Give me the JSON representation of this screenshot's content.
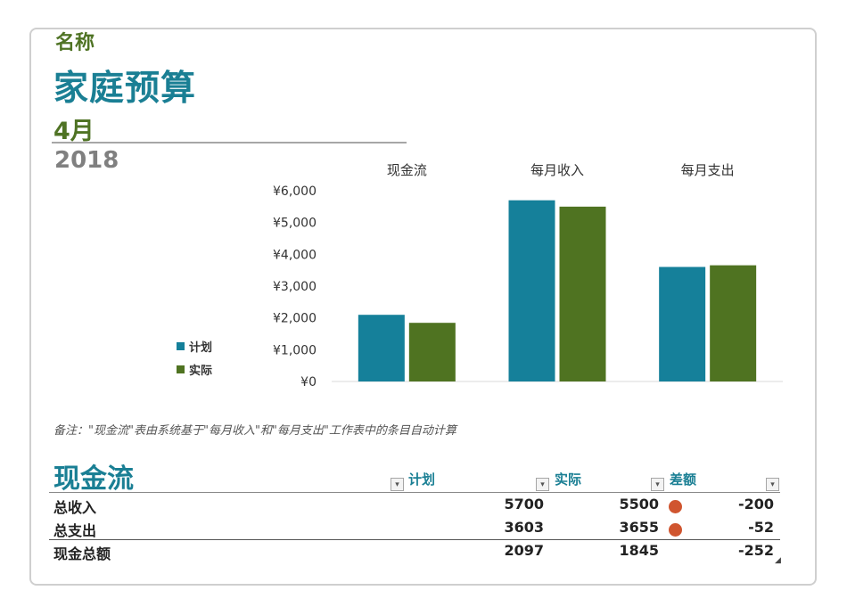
{
  "header": {
    "name_label": "名称",
    "title": "家庭预算",
    "month": "4月",
    "year": "2018"
  },
  "colors": {
    "plan": "#15809a",
    "actual": "#4f7321",
    "title_teal": "#1a7f94",
    "green": "#4f7324",
    "indicator_red": "#d0552f"
  },
  "chart_data": {
    "type": "bar",
    "categories": [
      "现金流",
      "每月收入",
      "每月支出"
    ],
    "series": [
      {
        "name": "计划",
        "values": [
          2097,
          5700,
          3603
        ]
      },
      {
        "name": "实际",
        "values": [
          1845,
          5500,
          3655
        ]
      }
    ],
    "y_ticks": [
      "¥6,000",
      "¥5,000",
      "¥4,000",
      "¥3,000",
      "¥2,000",
      "¥1,000",
      "¥0"
    ],
    "ylim": [
      0,
      6000
    ],
    "legend_position": "left"
  },
  "note": "备注：\"现金流\"表由系统基于\"每月收入\"和\"每月支出\"工作表中的条目自动计算",
  "table": {
    "title": "现金流",
    "columns": [
      "计划",
      "实际",
      "差额"
    ],
    "rows": [
      {
        "label": "总收入",
        "plan": "5700",
        "actual": "5500",
        "diff": "-200"
      },
      {
        "label": "总支出",
        "plan": "3603",
        "actual": "3655",
        "diff": "-52"
      }
    ],
    "total": {
      "label": "现金总额",
      "plan": "2097",
      "actual": "1845",
      "diff": "-252"
    }
  },
  "icons": {
    "dropdown": "▾",
    "resize": "◢"
  }
}
